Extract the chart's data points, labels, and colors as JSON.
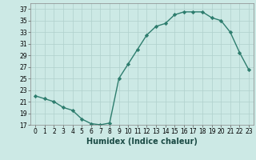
{
  "x": [
    0,
    1,
    2,
    3,
    4,
    5,
    6,
    7,
    8,
    9,
    10,
    11,
    12,
    13,
    14,
    15,
    16,
    17,
    18,
    19,
    20,
    21,
    22,
    23
  ],
  "y": [
    22,
    21.5,
    21,
    20,
    19.5,
    18,
    17.2,
    17,
    17.3,
    25,
    27.5,
    30,
    32.5,
    34,
    34.5,
    36,
    36.5,
    36.5,
    36.5,
    35.5,
    35,
    33,
    29.5,
    26.5
  ],
  "line_color": "#2e7d6e",
  "marker_color": "#2e7d6e",
  "bg_color": "#cce9e5",
  "grid_color": "#b0d0cc",
  "xlabel": "Humidex (Indice chaleur)",
  "ylim": [
    17,
    38
  ],
  "xlim": [
    -0.5,
    23.5
  ],
  "yticks": [
    17,
    19,
    21,
    23,
    25,
    27,
    29,
    31,
    33,
    35,
    37
  ],
  "xticks": [
    0,
    1,
    2,
    3,
    4,
    5,
    6,
    7,
    8,
    9,
    10,
    11,
    12,
    13,
    14,
    15,
    16,
    17,
    18,
    19,
    20,
    21,
    22,
    23
  ],
  "xlabel_fontsize": 7,
  "tick_fontsize": 5.5,
  "linewidth": 1.0,
  "markersize": 2.2
}
